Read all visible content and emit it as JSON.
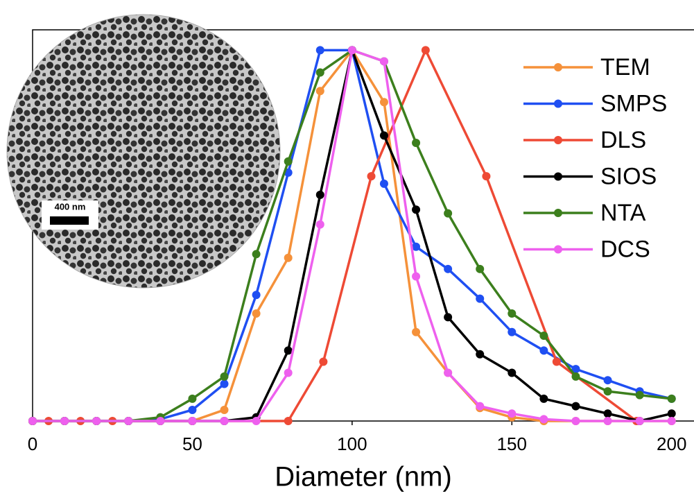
{
  "chart_data": {
    "type": "line",
    "x_label": "Diameter (nm)",
    "xlim": [
      0,
      207
    ],
    "ylim": [
      0,
      1.055
    ],
    "xticks": [
      0,
      50,
      100,
      150,
      200
    ],
    "legend": "upper right",
    "inset": {
      "scale_label": "400 nm"
    },
    "series": [
      {
        "name": "TEM",
        "color": "#f5913a",
        "x": [
          0,
          10,
          20,
          30,
          40,
          50,
          60,
          70,
          80,
          90,
          100,
          110,
          120,
          130,
          140,
          150,
          160,
          170,
          180,
          190,
          200
        ],
        "values": [
          0,
          0,
          0,
          0,
          0,
          0,
          0.03,
          0.29,
          0.44,
          0.89,
          1,
          0.86,
          0.24,
          0.13,
          0.035,
          0.01,
          0,
          0,
          0,
          0,
          0
        ]
      },
      {
        "name": "SMPS",
        "color": "#1f4ff2",
        "x": [
          0,
          10,
          20,
          30,
          40,
          50,
          60,
          70,
          80,
          90,
          100,
          110,
          120,
          130,
          140,
          150,
          160,
          170,
          180,
          190,
          200
        ],
        "values": [
          0,
          0,
          0,
          0,
          0.005,
          0.03,
          0.1,
          0.34,
          0.67,
          1,
          1,
          0.64,
          0.47,
          0.41,
          0.33,
          0.24,
          0.19,
          0.14,
          0.11,
          0.08,
          0.06
        ]
      },
      {
        "name": "DLS",
        "color": "#ee4a35",
        "x": [
          0,
          5,
          10,
          15,
          20,
          25,
          30,
          80,
          91,
          106,
          123,
          142,
          164,
          189
        ],
        "values": [
          0,
          0,
          0,
          0,
          0,
          0,
          0,
          0,
          0.16,
          0.66,
          1,
          0.66,
          0.16,
          0
        ]
      },
      {
        "name": "SIOS",
        "color": "#000000",
        "x": [
          0,
          10,
          20,
          30,
          40,
          50,
          60,
          70,
          80,
          90,
          100,
          110,
          120,
          130,
          140,
          150,
          160,
          170,
          180,
          190,
          200
        ],
        "values": [
          0,
          0,
          0,
          0,
          0,
          0,
          0,
          0.01,
          0.19,
          0.61,
          1,
          0.77,
          0.57,
          0.28,
          0.18,
          0.13,
          0.06,
          0.04,
          0.02,
          0,
          0.02
        ]
      },
      {
        "name": "NTA",
        "color": "#3c7f1d",
        "x": [
          0,
          10,
          20,
          30,
          40,
          50,
          60,
          70,
          80,
          90,
          100,
          110,
          120,
          130,
          140,
          150,
          160,
          170,
          180,
          190,
          200
        ],
        "values": [
          0,
          0,
          0,
          0,
          0.01,
          0.06,
          0.12,
          0.45,
          0.7,
          0.94,
          1,
          0.97,
          0.75,
          0.56,
          0.41,
          0.29,
          0.23,
          0.12,
          0.08,
          0.07,
          0.06
        ]
      },
      {
        "name": "DCS",
        "color": "#ee60ee",
        "x": [
          0,
          10,
          20,
          30,
          40,
          50,
          60,
          70,
          80,
          90,
          100,
          110,
          120,
          130,
          140,
          150,
          160,
          170,
          180,
          190,
          200
        ],
        "values": [
          0,
          0,
          0,
          0,
          0,
          0,
          0,
          0,
          0.13,
          0.53,
          1,
          0.97,
          0.39,
          0.13,
          0.04,
          0.02,
          0.005,
          0,
          0,
          0,
          0
        ]
      }
    ]
  }
}
